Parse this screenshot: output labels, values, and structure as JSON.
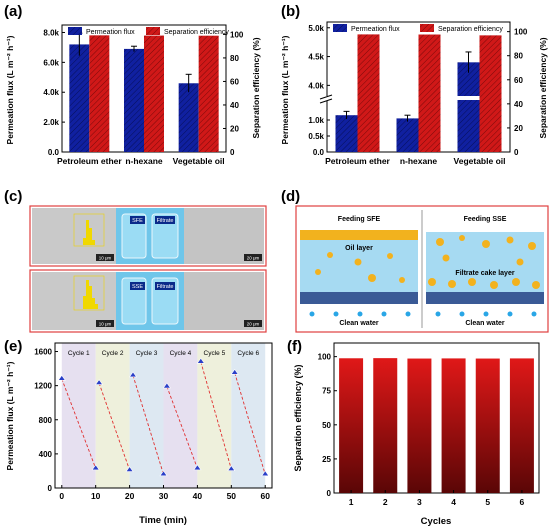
{
  "colors": {
    "flux_blue": "#1020a0",
    "eff_red": "#d01818",
    "cycle_marker": "#2a3fc8",
    "cycle_line": "#e03030",
    "band_purple": "#e6e0f0",
    "band_green": "#eef0dc",
    "band_blue": "#dde8f2",
    "photo_gray": "#c8c8c8",
    "frame_red": "#e04040",
    "water_blue": "#7fc8ee",
    "droplet": "#f2b21e"
  },
  "panels": {
    "a": {
      "label": "(a)",
      "legend_flux": "Permeation flux",
      "legend_eff": "Separation efficiency",
      "ylabel_left": "Permeation flux (L m⁻² h⁻¹)",
      "ylabel_right": "Separation efficiency (%)",
      "yticks_left": [
        "0.0",
        "2.0k",
        "4.0k",
        "6.0k",
        "8.0k"
      ],
      "yticks_right": [
        "0",
        "20",
        "40",
        "60",
        "80",
        "100"
      ]
    },
    "b": {
      "label": "(b)",
      "legend_flux": "Permeation flux",
      "legend_eff": "Separation efficiency",
      "ylabel_left": "Permeation flux (L m⁻² h⁻¹)",
      "ylabel_right": "Separation efficiency (%)",
      "yticks_left_upper": [
        "4.0k",
        "4.5k",
        "5.0k"
      ],
      "yticks_left_lower": [
        "0.0",
        "0.5k",
        "1.0k"
      ],
      "yticks_right": [
        "0",
        "20",
        "40",
        "60",
        "80",
        "100"
      ]
    },
    "c": {
      "label": "(c)",
      "top_tags": [
        "SFE",
        "Filtrate"
      ],
      "bottom_tags": [
        "SSE",
        "Filtrate"
      ],
      "scale_bars": [
        "10 μm",
        "20 μm",
        "10 μm",
        "20 μm"
      ]
    },
    "d": {
      "label": "(d)",
      "feed_left": "Feeding SFE",
      "feed_right": "Feeding SSE",
      "oil_layer": "Oil layer",
      "cake_layer": "Filtrate cake layer",
      "clean_left": "Clean water",
      "clean_right": "Clean water"
    },
    "e": {
      "label": "(e)",
      "ylabel": "Permeation flux (L m⁻² h⁻¹)",
      "xlabel": "Time (min)",
      "cycle_labels": [
        "Cycle 1",
        "Cycle 2",
        "Cycle 3",
        "Cycle 4",
        "Cycle 5",
        "Cycle 6"
      ],
      "xticks": [
        "0",
        "10",
        "20",
        "30",
        "40",
        "50",
        "60"
      ],
      "yticks": [
        "0",
        "400",
        "800",
        "1200",
        "1600"
      ]
    },
    "f": {
      "label": "(f)",
      "ylabel": "Separation efficiency (%)",
      "xlabel": "Cycles",
      "xticks": [
        "1",
        "2",
        "3",
        "4",
        "5",
        "6"
      ],
      "yticks": [
        "0",
        "25",
        "50",
        "75",
        "100"
      ]
    }
  },
  "chart_data": [
    {
      "panel": "a",
      "type": "bar",
      "categories": [
        "Petroleum ether",
        "n-hexane",
        "Vegetable oil"
      ],
      "series": [
        {
          "name": "Permeation flux",
          "axis": "left",
          "values": [
            7200,
            6900,
            4600
          ],
          "errors": [
            750,
            180,
            600
          ]
        },
        {
          "name": "Separation efficiency",
          "axis": "right",
          "values": [
            99.2,
            99.0,
            98.9
          ]
        }
      ],
      "ylim_left": [
        0,
        8500
      ],
      "ylim_right": [
        0,
        108
      ]
    },
    {
      "panel": "b",
      "type": "bar",
      "categories": [
        "Petroleum ether",
        "n-hexane",
        "Vegetable oil"
      ],
      "series": [
        {
          "name": "Permeation flux",
          "axis": "left",
          "values": [
            1150,
            1050,
            4400
          ],
          "errors": [
            120,
            100,
            180
          ]
        },
        {
          "name": "Separation efficiency",
          "axis": "right",
          "values": [
            97.7,
            97.6,
            96.9
          ]
        }
      ],
      "axis_break": {
        "lower": [
          0,
          1500
        ],
        "upper": [
          3850,
          5100
        ]
      },
      "ylim_right": [
        0,
        108
      ]
    },
    {
      "panel": "e",
      "type": "line",
      "x": [
        0,
        10,
        11,
        20,
        21,
        30,
        31,
        40,
        41,
        50,
        51,
        60
      ],
      "y": [
        1280,
        230,
        1230,
        210,
        1320,
        160,
        1190,
        230,
        1480,
        220,
        1350,
        160
      ],
      "segments": [
        [
          0,
          1
        ],
        [
          2,
          3
        ],
        [
          4,
          5
        ],
        [
          6,
          7
        ],
        [
          8,
          9
        ],
        [
          10,
          11
        ]
      ],
      "cycle_bounds": [
        0,
        10,
        20,
        30,
        40,
        50,
        60
      ],
      "xlim": [
        -2,
        62
      ],
      "ylim": [
        0,
        1700
      ]
    },
    {
      "panel": "f",
      "type": "bar",
      "categories": [
        "1",
        "2",
        "3",
        "4",
        "5",
        "6"
      ],
      "values": [
        98.8,
        98.9,
        98.6,
        98.7,
        98.6,
        98.7
      ],
      "ylim": [
        0,
        110
      ]
    }
  ]
}
